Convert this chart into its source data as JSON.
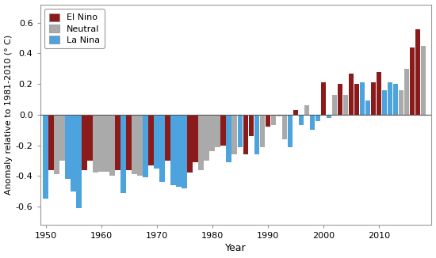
{
  "xlabel": "Year",
  "ylabel": "Anomaly relative to 1981-2010 (° C)",
  "ylim": [
    -0.72,
    0.72
  ],
  "yticks": [
    -0.6,
    -0.4,
    -0.2,
    0.0,
    0.2,
    0.4,
    0.6
  ],
  "colors": {
    "El Nino": "#8B1A1A",
    "Neutral": "#AAAAAA",
    "La Nina": "#4CA3DD"
  },
  "background": "#FFFFFF",
  "data": [
    {
      "year": 1950,
      "value": -0.55,
      "type": "La Nina"
    },
    {
      "year": 1951,
      "value": -0.36,
      "type": "El Nino"
    },
    {
      "year": 1952,
      "value": -0.39,
      "type": "Neutral"
    },
    {
      "year": 1953,
      "value": -0.3,
      "type": "Neutral"
    },
    {
      "year": 1954,
      "value": -0.42,
      "type": "La Nina"
    },
    {
      "year": 1955,
      "value": -0.5,
      "type": "La Nina"
    },
    {
      "year": 1956,
      "value": -0.61,
      "type": "La Nina"
    },
    {
      "year": 1957,
      "value": -0.36,
      "type": "El Nino"
    },
    {
      "year": 1958,
      "value": -0.3,
      "type": "El Nino"
    },
    {
      "year": 1959,
      "value": -0.38,
      "type": "Neutral"
    },
    {
      "year": 1960,
      "value": -0.37,
      "type": "Neutral"
    },
    {
      "year": 1961,
      "value": -0.37,
      "type": "Neutral"
    },
    {
      "year": 1962,
      "value": -0.4,
      "type": "Neutral"
    },
    {
      "year": 1963,
      "value": -0.36,
      "type": "El Nino"
    },
    {
      "year": 1964,
      "value": -0.51,
      "type": "La Nina"
    },
    {
      "year": 1965,
      "value": -0.36,
      "type": "El Nino"
    },
    {
      "year": 1966,
      "value": -0.39,
      "type": "Neutral"
    },
    {
      "year": 1967,
      "value": -0.4,
      "type": "Neutral"
    },
    {
      "year": 1968,
      "value": -0.41,
      "type": "La Nina"
    },
    {
      "year": 1969,
      "value": -0.33,
      "type": "El Nino"
    },
    {
      "year": 1970,
      "value": -0.35,
      "type": "La Nina"
    },
    {
      "year": 1971,
      "value": -0.44,
      "type": "La Nina"
    },
    {
      "year": 1972,
      "value": -0.3,
      "type": "El Nino"
    },
    {
      "year": 1973,
      "value": -0.46,
      "type": "La Nina"
    },
    {
      "year": 1974,
      "value": -0.47,
      "type": "La Nina"
    },
    {
      "year": 1975,
      "value": -0.48,
      "type": "La Nina"
    },
    {
      "year": 1976,
      "value": -0.38,
      "type": "El Nino"
    },
    {
      "year": 1977,
      "value": -0.31,
      "type": "El Nino"
    },
    {
      "year": 1978,
      "value": -0.36,
      "type": "Neutral"
    },
    {
      "year": 1979,
      "value": -0.3,
      "type": "Neutral"
    },
    {
      "year": 1980,
      "value": -0.24,
      "type": "Neutral"
    },
    {
      "year": 1981,
      "value": -0.21,
      "type": "Neutral"
    },
    {
      "year": 1982,
      "value": -0.2,
      "type": "El Nino"
    },
    {
      "year": 1983,
      "value": -0.31,
      "type": "La Nina"
    },
    {
      "year": 1984,
      "value": -0.26,
      "type": "Neutral"
    },
    {
      "year": 1985,
      "value": -0.21,
      "type": "La Nina"
    },
    {
      "year": 1986,
      "value": -0.26,
      "type": "El Nino"
    },
    {
      "year": 1987,
      "value": -0.14,
      "type": "El Nino"
    },
    {
      "year": 1988,
      "value": -0.26,
      "type": "La Nina"
    },
    {
      "year": 1989,
      "value": -0.21,
      "type": "Neutral"
    },
    {
      "year": 1990,
      "value": -0.08,
      "type": "El Nino"
    },
    {
      "year": 1991,
      "value": -0.07,
      "type": "Neutral"
    },
    {
      "year": 1992,
      "value": -0.01,
      "type": "Neutral"
    },
    {
      "year": 1993,
      "value": -0.16,
      "type": "Neutral"
    },
    {
      "year": 1994,
      "value": -0.21,
      "type": "La Nina"
    },
    {
      "year": 1995,
      "value": 0.03,
      "type": "El Nino"
    },
    {
      "year": 1996,
      "value": -0.07,
      "type": "La Nina"
    },
    {
      "year": 1997,
      "value": 0.06,
      "type": "Neutral"
    },
    {
      "year": 1998,
      "value": -0.1,
      "type": "La Nina"
    },
    {
      "year": 1999,
      "value": -0.04,
      "type": "La Nina"
    },
    {
      "year": 2000,
      "value": 0.21,
      "type": "El Nino"
    },
    {
      "year": 2001,
      "value": -0.02,
      "type": "La Nina"
    },
    {
      "year": 2002,
      "value": 0.13,
      "type": "Neutral"
    },
    {
      "year": 2003,
      "value": 0.2,
      "type": "El Nino"
    },
    {
      "year": 2004,
      "value": 0.13,
      "type": "Neutral"
    },
    {
      "year": 2005,
      "value": 0.27,
      "type": "El Nino"
    },
    {
      "year": 2006,
      "value": 0.2,
      "type": "El Nino"
    },
    {
      "year": 2007,
      "value": 0.21,
      "type": "La Nina"
    },
    {
      "year": 2008,
      "value": 0.09,
      "type": "La Nina"
    },
    {
      "year": 2009,
      "value": 0.21,
      "type": "El Nino"
    },
    {
      "year": 2010,
      "value": 0.28,
      "type": "El Nino"
    },
    {
      "year": 2011,
      "value": 0.16,
      "type": "La Nina"
    },
    {
      "year": 2012,
      "value": 0.21,
      "type": "La Nina"
    },
    {
      "year": 2013,
      "value": 0.2,
      "type": "La Nina"
    },
    {
      "year": 2014,
      "value": 0.16,
      "type": "Neutral"
    },
    {
      "year": 2015,
      "value": 0.3,
      "type": "Neutral"
    },
    {
      "year": 2016,
      "value": 0.44,
      "type": "El Nino"
    },
    {
      "year": 2017,
      "value": 0.56,
      "type": "El Nino"
    },
    {
      "year": 2018,
      "value": 0.45,
      "type": "Neutral"
    }
  ]
}
